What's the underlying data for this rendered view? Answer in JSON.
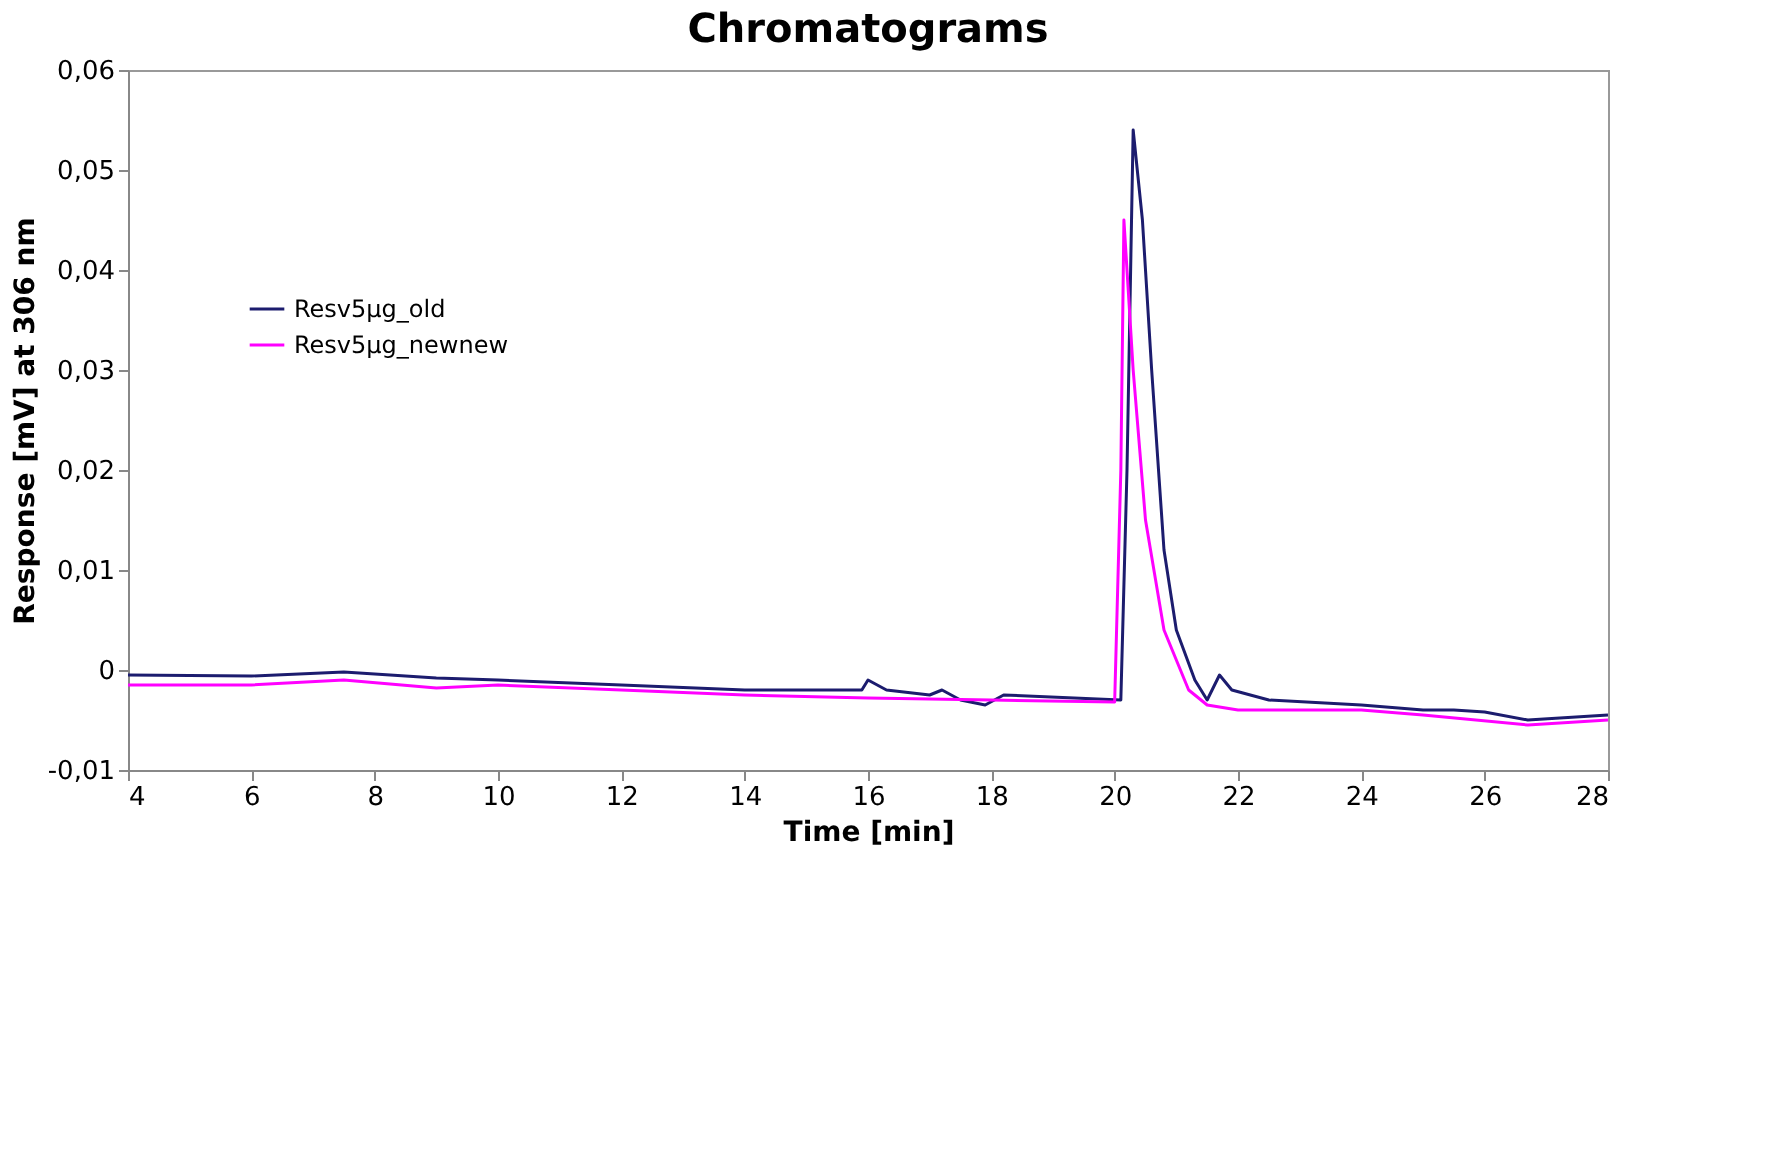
{
  "chart_data": {
    "type": "line",
    "title": "Chromatograms",
    "xlabel": "Time [min]",
    "ylabel": "Response [mV] at 306 nm",
    "xlim": [
      4,
      28
    ],
    "xticks": [
      4,
      6,
      8,
      10,
      12,
      14,
      16,
      18,
      20,
      22,
      24,
      26,
      28
    ],
    "ylim": [
      -0.01,
      0.06
    ],
    "yticks": [
      {
        "value": -0.01,
        "label": "-0,01"
      },
      {
        "value": 0,
        "label": "0"
      },
      {
        "value": 0.01,
        "label": "0,01"
      },
      {
        "value": 0.02,
        "label": "0,02"
      },
      {
        "value": 0.03,
        "label": "0,03"
      },
      {
        "value": 0.04,
        "label": "0,04"
      },
      {
        "value": 0.05,
        "label": "0,05"
      },
      {
        "value": 0.06,
        "label": "0,06"
      }
    ],
    "grid": false,
    "legend": "left",
    "line_style": "solid",
    "marker": "none",
    "series": [
      {
        "name": "Resv5µg_old",
        "color": "#1c1c6e",
        "x": [
          4,
          6,
          7.5,
          9,
          10,
          12,
          14,
          15.9,
          16,
          16.3,
          17,
          17.2,
          17.5,
          17.9,
          18.2,
          20.1,
          20.2,
          20.3,
          20.45,
          20.6,
          20.8,
          21,
          21.3,
          21.5,
          21.7,
          21.9,
          22.5,
          24,
          25,
          25.5,
          26,
          26.7,
          28
        ],
        "values": [
          -0.0005,
          -0.0006,
          -0.0002,
          -0.0008,
          -0.001,
          -0.0015,
          -0.002,
          -0.002,
          -0.001,
          -0.002,
          -0.0025,
          -0.002,
          -0.003,
          -0.0035,
          -0.0025,
          -0.003,
          0.02,
          0.054,
          0.045,
          0.03,
          0.012,
          0.004,
          -0.001,
          -0.003,
          -0.0005,
          -0.002,
          -0.003,
          -0.0035,
          -0.004,
          -0.004,
          -0.0042,
          -0.005,
          -0.0045
        ]
      },
      {
        "name": "Resv5µg_newnew",
        "color": "#ff00ff",
        "x": [
          4,
          6,
          7.5,
          9,
          10,
          12,
          14,
          16,
          18,
          20,
          20.1,
          20.15,
          20.3,
          20.5,
          20.8,
          21.2,
          21.5,
          22,
          24,
          25,
          26.7,
          28
        ],
        "values": [
          -0.0015,
          -0.0015,
          -0.001,
          -0.0018,
          -0.0015,
          -0.002,
          -0.0025,
          -0.0028,
          -0.003,
          -0.0032,
          0.02,
          0.045,
          0.03,
          0.015,
          0.004,
          -0.002,
          -0.0035,
          -0.004,
          -0.004,
          -0.0045,
          -0.0055,
          -0.005
        ]
      }
    ]
  }
}
